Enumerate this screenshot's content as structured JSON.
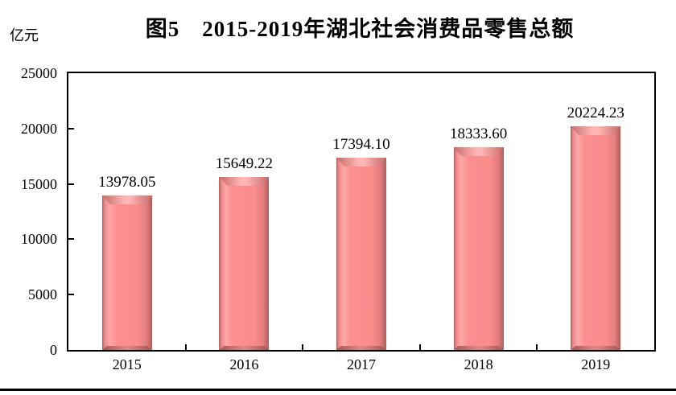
{
  "chart_data": {
    "type": "bar",
    "title": "图5　2015-2019年湖北社会消费品零售总额",
    "unit_label": "亿元",
    "categories": [
      "2015",
      "2016",
      "2017",
      "2018",
      "2019"
    ],
    "values": [
      13978.05,
      15649.22,
      17394.1,
      18333.6,
      20224.23
    ],
    "value_labels": [
      "13978.05",
      "15649.22",
      "17394.10",
      "18333.60",
      "20224.23"
    ],
    "ylim": [
      0,
      25000
    ],
    "yticks": [
      0,
      5000,
      10000,
      15000,
      20000,
      25000
    ],
    "ytick_labels": [
      "0",
      "5000",
      "10000",
      "15000",
      "20000",
      "25000"
    ],
    "grid": false,
    "legend_position": "none",
    "bar_color": "#fa8c8c",
    "bar_edge_color": "#b05c5c",
    "bar_highlight_color": "#ffb6b6",
    "axis_color": "#000000"
  }
}
